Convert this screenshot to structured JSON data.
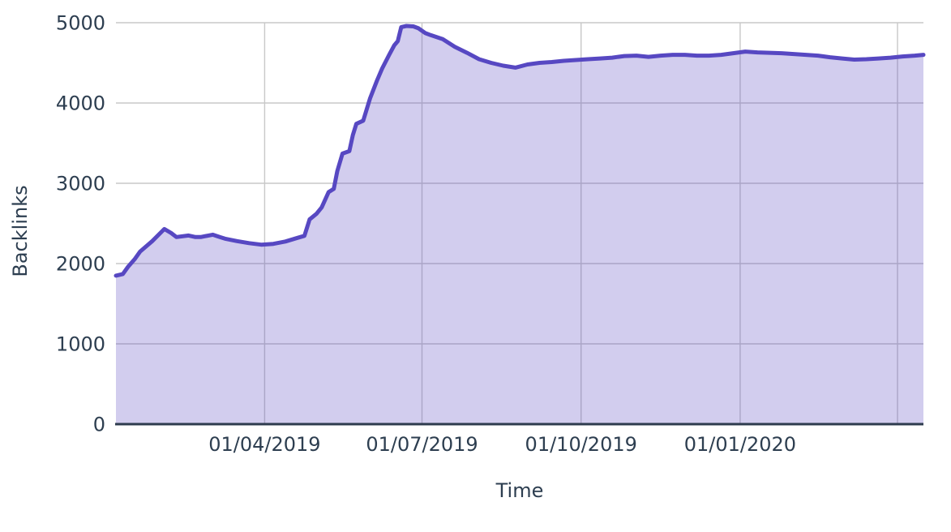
{
  "chart_data": {
    "type": "area",
    "title": "",
    "xlabel": "Time",
    "ylabel": "Backlinks",
    "legend": "none",
    "grid": true,
    "ylim": [
      0,
      5000
    ],
    "y_ticks": [
      0,
      1000,
      2000,
      3000,
      4000,
      5000
    ],
    "x_range": [
      "2019-01-05",
      "2020-04-16"
    ],
    "x_ticks": [
      {
        "date": "2019-04-01",
        "label": "01/04/2019"
      },
      {
        "date": "2019-07-01",
        "label": "01/07/2019"
      },
      {
        "date": "2019-10-01",
        "label": "01/10/2019"
      },
      {
        "date": "2020-01-01",
        "label": "01/01/2020"
      },
      {
        "date": "2020-04-01",
        "label": ""
      }
    ],
    "colors": {
      "line": "#5748c2",
      "fill_rgba": "rgba(87,72,194,0.27)",
      "grid": "#c8c8c8",
      "axis": "#2e3b4e",
      "text": "#2d3e50"
    },
    "series": [
      {
        "name": "Backlinks",
        "points": [
          [
            "2019-01-05",
            1850
          ],
          [
            "2019-01-09",
            1870
          ],
          [
            "2019-01-12",
            1960
          ],
          [
            "2019-01-16",
            2060
          ],
          [
            "2019-01-19",
            2150
          ],
          [
            "2019-01-26",
            2280
          ],
          [
            "2019-02-02",
            2430
          ],
          [
            "2019-02-06",
            2380
          ],
          [
            "2019-02-09",
            2330
          ],
          [
            "2019-02-16",
            2350
          ],
          [
            "2019-02-20",
            2330
          ],
          [
            "2019-02-23",
            2330
          ],
          [
            "2019-03-02",
            2360
          ],
          [
            "2019-03-06",
            2330
          ],
          [
            "2019-03-09",
            2310
          ],
          [
            "2019-03-16",
            2280
          ],
          [
            "2019-03-23",
            2255
          ],
          [
            "2019-03-30",
            2235
          ],
          [
            "2019-04-06",
            2245
          ],
          [
            "2019-04-13",
            2275
          ],
          [
            "2019-04-20",
            2320
          ],
          [
            "2019-04-24",
            2345
          ],
          [
            "2019-04-27",
            2550
          ],
          [
            "2019-05-01",
            2620
          ],
          [
            "2019-05-04",
            2700
          ],
          [
            "2019-05-08",
            2890
          ],
          [
            "2019-05-11",
            2930
          ],
          [
            "2019-05-13",
            3150
          ],
          [
            "2019-05-16",
            3370
          ],
          [
            "2019-05-20",
            3400
          ],
          [
            "2019-05-22",
            3600
          ],
          [
            "2019-05-24",
            3740
          ],
          [
            "2019-05-28",
            3780
          ],
          [
            "2019-06-01",
            4060
          ],
          [
            "2019-06-05",
            4280
          ],
          [
            "2019-06-08",
            4430
          ],
          [
            "2019-06-12",
            4600
          ],
          [
            "2019-06-15",
            4720
          ],
          [
            "2019-06-17",
            4770
          ],
          [
            "2019-06-19",
            4945
          ],
          [
            "2019-06-22",
            4960
          ],
          [
            "2019-06-26",
            4955
          ],
          [
            "2019-06-29",
            4930
          ],
          [
            "2019-07-03",
            4870
          ],
          [
            "2019-07-06",
            4845
          ],
          [
            "2019-07-13",
            4795
          ],
          [
            "2019-07-20",
            4700
          ],
          [
            "2019-07-27",
            4625
          ],
          [
            "2019-08-03",
            4545
          ],
          [
            "2019-08-10",
            4500
          ],
          [
            "2019-08-17",
            4465
          ],
          [
            "2019-08-24",
            4440
          ],
          [
            "2019-08-31",
            4480
          ],
          [
            "2019-09-07",
            4500
          ],
          [
            "2019-09-14",
            4510
          ],
          [
            "2019-09-21",
            4525
          ],
          [
            "2019-09-28",
            4535
          ],
          [
            "2019-10-05",
            4545
          ],
          [
            "2019-10-12",
            4555
          ],
          [
            "2019-10-19",
            4565
          ],
          [
            "2019-10-26",
            4585
          ],
          [
            "2019-11-02",
            4590
          ],
          [
            "2019-11-09",
            4575
          ],
          [
            "2019-11-16",
            4590
          ],
          [
            "2019-11-23",
            4600
          ],
          [
            "2019-11-30",
            4600
          ],
          [
            "2019-12-07",
            4590
          ],
          [
            "2019-12-14",
            4590
          ],
          [
            "2019-12-21",
            4600
          ],
          [
            "2019-12-28",
            4620
          ],
          [
            "2020-01-04",
            4640
          ],
          [
            "2020-01-11",
            4630
          ],
          [
            "2020-01-18",
            4625
          ],
          [
            "2020-01-25",
            4620
          ],
          [
            "2020-02-01",
            4610
          ],
          [
            "2020-02-08",
            4600
          ],
          [
            "2020-02-15",
            4590
          ],
          [
            "2020-02-22",
            4570
          ],
          [
            "2020-02-29",
            4555
          ],
          [
            "2020-03-07",
            4540
          ],
          [
            "2020-03-14",
            4545
          ],
          [
            "2020-03-21",
            4555
          ],
          [
            "2020-03-28",
            4565
          ],
          [
            "2020-04-04",
            4580
          ],
          [
            "2020-04-11",
            4590
          ],
          [
            "2020-04-16",
            4600
          ]
        ]
      }
    ]
  }
}
